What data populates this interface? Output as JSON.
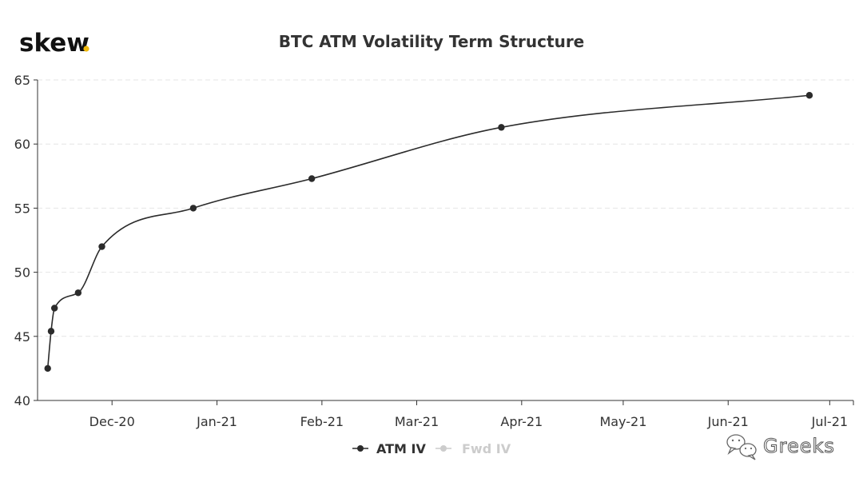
{
  "brand": {
    "logo_text": "skew",
    "logo_dot_color": "#f0b90b"
  },
  "watermark": {
    "text": "Greeks",
    "icon": "wechat-icon"
  },
  "colors": {
    "atm_line": "#2b2b2b",
    "fwd_legend": "#cccccc",
    "grid": "#e6e6e6",
    "axis": "#333333"
  },
  "chart_data": {
    "type": "line",
    "title": "BTC ATM Volatility Term Structure",
    "xlabel": "",
    "ylabel": "",
    "x_ticks": [
      "Dec-20",
      "Jan-21",
      "Feb-21",
      "Mar-21",
      "Apr-21",
      "May-21",
      "Jun-21",
      "Jul-21"
    ],
    "x_tick_dates": [
      "2020-12-01",
      "2021-01-01",
      "2021-02-01",
      "2021-03-01",
      "2021-04-01",
      "2021-05-01",
      "2021-06-01",
      "2021-07-01"
    ],
    "xlim": [
      "2020-11-09",
      "2021-07-08"
    ],
    "y_ticks": [
      40,
      45,
      50,
      55,
      60,
      65
    ],
    "ylim": [
      40,
      65
    ],
    "grid": "horizontal dashed",
    "legend_position": "bottom-center",
    "series": [
      {
        "name": "ATM IV",
        "color": "#2b2b2b",
        "visible": true,
        "points": [
          {
            "x": "2020-11-12",
            "y": 42.5
          },
          {
            "x": "2020-11-13",
            "y": 45.4
          },
          {
            "x": "2020-11-14",
            "y": 47.2
          },
          {
            "x": "2020-11-21",
            "y": 48.4
          },
          {
            "x": "2020-11-28",
            "y": 52.0
          },
          {
            "x": "2020-12-25",
            "y": 55.0
          },
          {
            "x": "2021-01-29",
            "y": 57.3
          },
          {
            "x": "2021-03-26",
            "y": 61.3
          },
          {
            "x": "2021-06-25",
            "y": 63.8
          }
        ]
      },
      {
        "name": "Fwd IV",
        "color": "#cccccc",
        "visible": false,
        "points": []
      }
    ]
  }
}
